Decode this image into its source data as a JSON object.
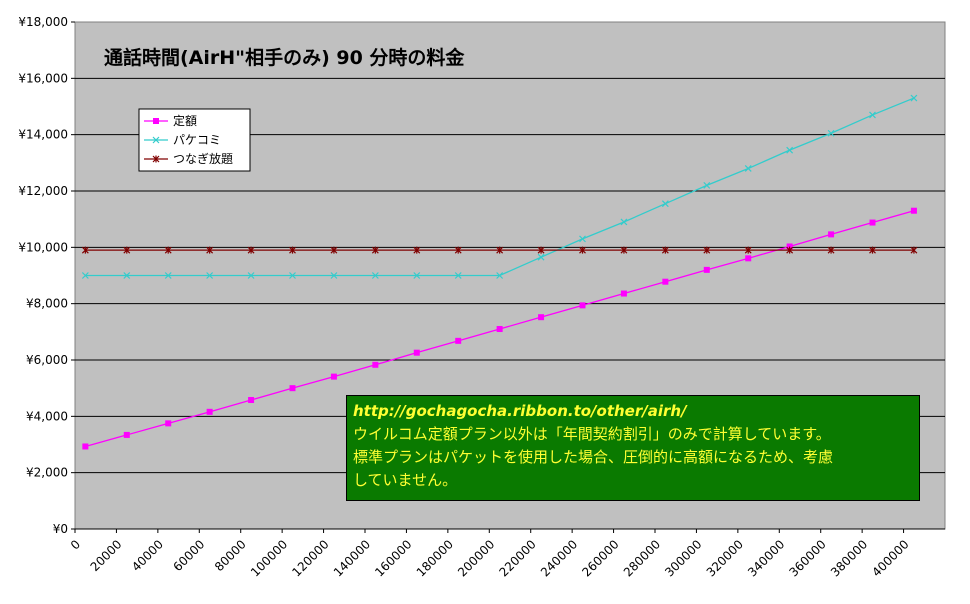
{
  "chart_data": {
    "type": "line",
    "title": "通話時間(AirH\"相手のみ) 90 分時の料金",
    "x_ticks": [
      "0",
      "20000",
      "40000",
      "60000",
      "80000",
      "100000",
      "120000",
      "140000",
      "160000",
      "180000",
      "200000",
      "220000",
      "240000",
      "260000",
      "280000",
      "300000",
      "320000",
      "340000",
      "360000",
      "380000",
      "400000"
    ],
    "xlim": [
      0,
      420000
    ],
    "y_ticks": [
      "¥0",
      "¥2,000",
      "¥4,000",
      "¥6,000",
      "¥8,000",
      "¥10,000",
      "¥12,000",
      "¥14,000",
      "¥16,000",
      "¥18,000"
    ],
    "ylim": [
      0,
      18000
    ],
    "grid": true,
    "legend_position": "top-left",
    "x": [
      5000,
      25000,
      45000,
      65000,
      85000,
      105000,
      125000,
      145000,
      165000,
      185000,
      205000,
      225000,
      245000,
      265000,
      285000,
      305000,
      325000,
      345000,
      365000,
      385000,
      405000
    ],
    "series": [
      {
        "name": "定額",
        "color": "#ff00ff",
        "marker": "square",
        "values": [
          2930,
          3340,
          3750,
          4160,
          4580,
          5000,
          5410,
          5830,
          6260,
          6680,
          7100,
          7520,
          7940,
          8360,
          8780,
          9200,
          9610,
          10030,
          10460,
          10880,
          11300
        ]
      },
      {
        "name": "パケコミ",
        "color": "#33cccc",
        "marker": "x",
        "values": [
          9000,
          9000,
          9000,
          9000,
          9000,
          9000,
          9000,
          9000,
          9000,
          9000,
          9000,
          9650,
          10300,
          10900,
          11550,
          12200,
          12800,
          13450,
          14050,
          14700,
          15300
        ]
      },
      {
        "name": "つなぎ放題",
        "color": "#800000",
        "marker": "star",
        "values": [
          9900,
          9900,
          9900,
          9900,
          9900,
          9900,
          9900,
          9900,
          9900,
          9900,
          9900,
          9900,
          9900,
          9900,
          9900,
          9900,
          9900,
          9900,
          9900,
          9900,
          9900
        ]
      }
    ]
  },
  "note": {
    "url": "http://gochagocha.ribbon.to/other/airh/",
    "lines": [
      "ウイルコム定額プラン以外は「年間契約割引」のみで計算しています。",
      "標準プランはパケットを使用した場合、圧倒的に高額になるため、考慮",
      "していません。"
    ]
  },
  "colors": {
    "plot_bg": "#c0c0c0",
    "note_bg": "#0a7a00",
    "note_text": "#ffff33"
  }
}
